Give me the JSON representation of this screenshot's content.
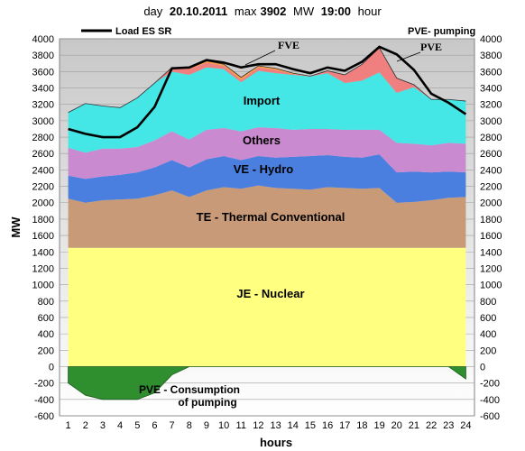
{
  "header": {
    "day_label": "day",
    "date": "20.10.2011",
    "max_label": "max",
    "max_value": "3902",
    "max_unit": "MW",
    "hour_value": "19:00",
    "hour_label": "hour"
  },
  "chart_data": {
    "type": "area",
    "ylabel": "MW",
    "xlabel": "hours",
    "x": [
      1,
      2,
      3,
      4,
      5,
      6,
      7,
      8,
      9,
      10,
      11,
      12,
      13,
      14,
      15,
      16,
      17,
      18,
      19,
      20,
      21,
      22,
      23,
      24
    ],
    "ylim": [
      -600,
      4000
    ],
    "ytick_step": 200,
    "grid": true,
    "legend": "top",
    "series": [
      {
        "name": "JE - Nuclear",
        "color": "#ffff80",
        "values": [
          1450,
          1450,
          1450,
          1450,
          1450,
          1450,
          1450,
          1450,
          1450,
          1450,
          1450,
          1450,
          1450,
          1450,
          1450,
          1450,
          1450,
          1450,
          1450,
          1450,
          1450,
          1450,
          1450,
          1450
        ]
      },
      {
        "name": "TE - Thermal Conventional",
        "color": "#c89a78",
        "values": [
          600,
          550,
          580,
          590,
          600,
          640,
          700,
          620,
          700,
          740,
          720,
          760,
          730,
          720,
          710,
          740,
          730,
          720,
          730,
          550,
          560,
          580,
          610,
          620
        ]
      },
      {
        "name": "VE - Hydro",
        "color": "#4a7fe0",
        "values": [
          280,
          290,
          290,
          300,
          320,
          340,
          370,
          360,
          380,
          380,
          350,
          360,
          370,
          390,
          410,
          390,
          380,
          380,
          410,
          370,
          370,
          340,
          320,
          300
        ]
      },
      {
        "name": "Others",
        "color": "#c98ad0",
        "values": [
          340,
          320,
          340,
          320,
          310,
          330,
          350,
          340,
          360,
          340,
          350,
          350,
          360,
          330,
          330,
          320,
          330,
          340,
          300,
          360,
          340,
          330,
          350,
          350
        ]
      },
      {
        "name": "Import",
        "color": "#44e6e6",
        "values": [
          430,
          600,
          520,
          500,
          600,
          700,
          730,
          790,
          760,
          720,
          600,
          690,
          670,
          670,
          640,
          680,
          570,
          600,
          700,
          610,
          690,
          560,
          530,
          520
        ]
      },
      {
        "name": "PVE",
        "color": "#f08080",
        "values": [
          0,
          0,
          0,
          0,
          0,
          0,
          50,
          70,
          60,
          40,
          30,
          40,
          40,
          10,
          5,
          30,
          100,
          200,
          300,
          180,
          30,
          0,
          0,
          0
        ]
      },
      {
        "name": "FVE",
        "color": "#ffa040",
        "values": [
          0,
          0,
          0,
          0,
          0,
          0,
          0,
          10,
          20,
          20,
          30,
          20,
          20,
          10,
          0,
          0,
          0,
          0,
          0,
          0,
          0,
          0,
          0,
          0
        ]
      },
      {
        "name": "PVE - Consumption of pumping",
        "color": "#2f8f2f",
        "values": [
          -200,
          -350,
          -400,
          -400,
          -400,
          -320,
          -100,
          0,
          0,
          0,
          0,
          0,
          0,
          0,
          0,
          0,
          0,
          0,
          0,
          0,
          0,
          0,
          0,
          -150
        ]
      },
      {
        "name": "Load ES SR",
        "color": "#000000",
        "type": "line",
        "values": [
          2900,
          2840,
          2800,
          2800,
          2920,
          3170,
          3640,
          3650,
          3740,
          3710,
          3650,
          3690,
          3690,
          3630,
          3580,
          3650,
          3610,
          3720,
          3902,
          3810,
          3620,
          3330,
          3220,
          3080
        ]
      }
    ],
    "labels": {
      "nuclear": "JE - Nuclear",
      "thermal": "TE - Thermal Conventional",
      "hydro": "VE - Hydro",
      "others": "Others",
      "import": "Import",
      "fve": "FVE",
      "pve": "PVE",
      "pve_pumping": "PVE- pumping",
      "consumption_line1": "PVE  - Consumption",
      "consumption_line2": "of pumping",
      "load": "Load ES SR"
    }
  }
}
